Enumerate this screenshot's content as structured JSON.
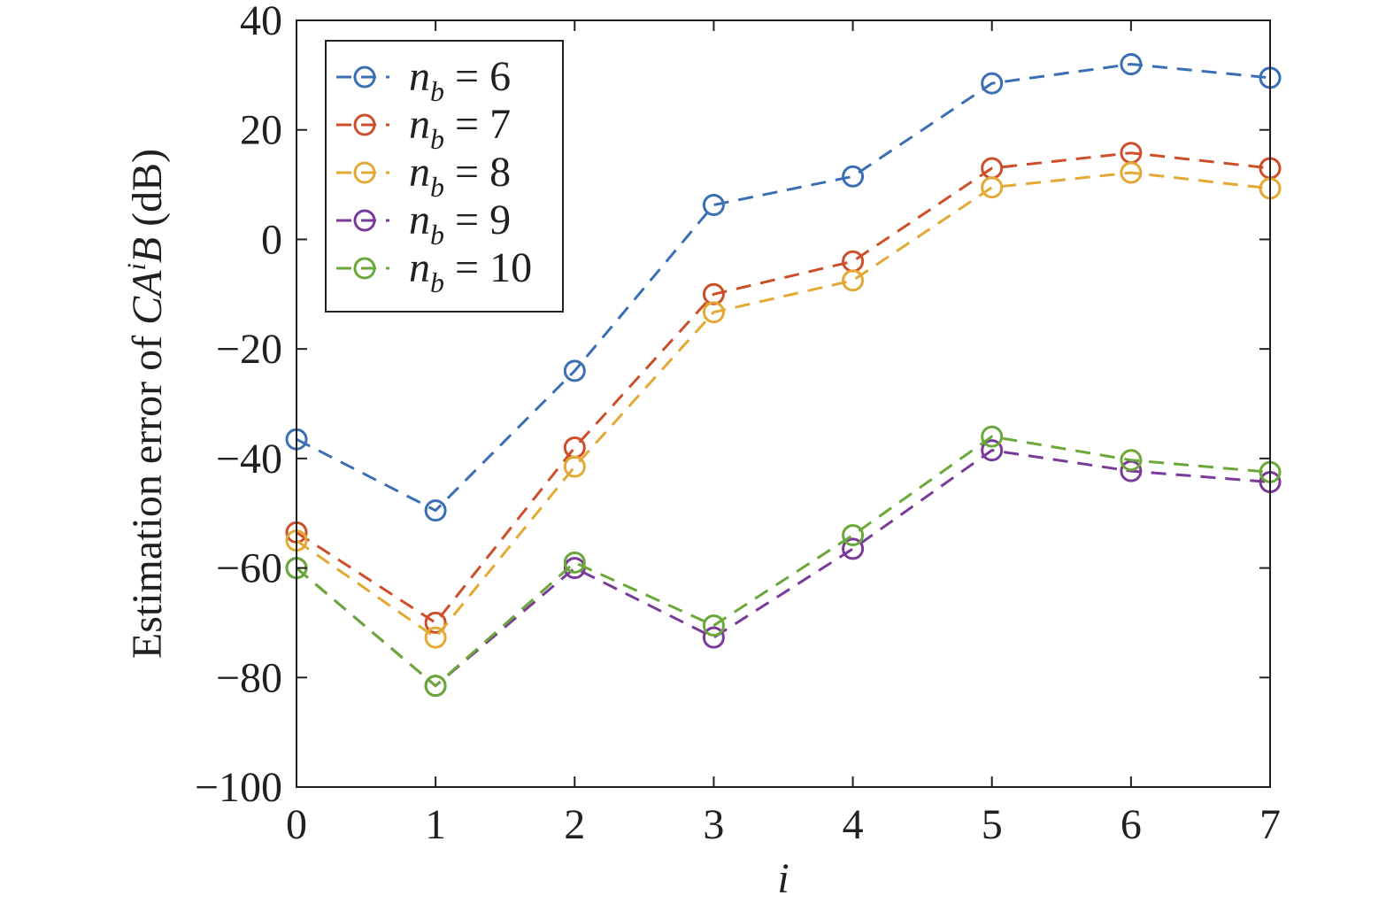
{
  "chart_data": {
    "type": "line",
    "title": "",
    "xlabel": "i",
    "ylabel": {
      "prefix": "Estimation error of ",
      "italic_main": "CA",
      "superscript": "i",
      "italic_tail": "B",
      "suffix": " (dB)"
    },
    "x": [
      0,
      1,
      2,
      3,
      4,
      5,
      6,
      7
    ],
    "xlim": [
      0,
      7
    ],
    "ylim": [
      -100,
      40
    ],
    "xticks": [
      "0",
      "1",
      "2",
      "3",
      "4",
      "5",
      "6",
      "7"
    ],
    "yticks": [
      "40",
      "20",
      "0",
      "−20",
      "−40",
      "−60",
      "−80",
      "−100"
    ],
    "ytick_values": [
      40,
      20,
      0,
      -20,
      -40,
      -60,
      -80,
      -100
    ],
    "grid": false,
    "legend_position": "top-left",
    "line_style": "dashed",
    "marker": "open-circle",
    "series": [
      {
        "name_var": "n",
        "name_sub": "b",
        "name_value": "= 6",
        "color": "#3a6fb4",
        "values": [
          -36.5,
          -49.5,
          -24,
          6.3,
          11.5,
          28.5,
          32,
          29.5
        ]
      },
      {
        "name_var": "n",
        "name_sub": "b",
        "name_value": "= 7",
        "color": "#cd4f2a",
        "values": [
          -53.5,
          -70,
          -38,
          -10,
          -4,
          13,
          15.8,
          13
        ]
      },
      {
        "name_var": "n",
        "name_sub": "b",
        "name_value": "= 8",
        "color": "#e3a934",
        "values": [
          -55,
          -72.7,
          -41.5,
          -13.3,
          -7.5,
          9.5,
          12.2,
          9.3
        ]
      },
      {
        "name_var": "n",
        "name_sub": "b",
        "name_value": "= 9",
        "color": "#7a3a98",
        "values": [
          -60,
          -81.5,
          -60,
          -72.7,
          -56.5,
          -38.5,
          -42.3,
          -44.3
        ]
      },
      {
        "name_var": "n",
        "name_sub": "b",
        "name_value": "= 10",
        "color": "#6ba83a",
        "values": [
          -60,
          -81.5,
          -59,
          -70.5,
          -54,
          -36,
          -40.3,
          -42.5
        ]
      }
    ]
  }
}
